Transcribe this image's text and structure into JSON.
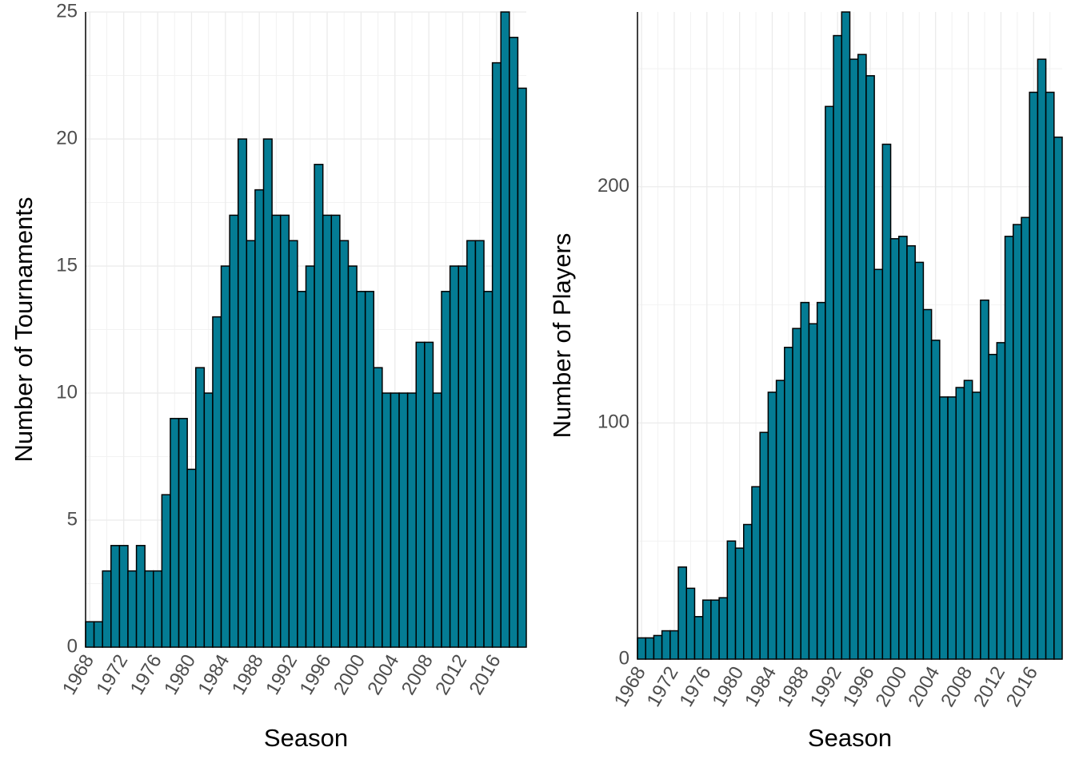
{
  "chart_data": [
    {
      "type": "bar",
      "xlabel": "Season",
      "ylabel": "Number of Tournaments",
      "color": "#047c94",
      "grid": true,
      "x": [
        1968,
        1969,
        1970,
        1971,
        1972,
        1973,
        1974,
        1975,
        1976,
        1977,
        1978,
        1979,
        1980,
        1981,
        1982,
        1983,
        1984,
        1985,
        1986,
        1987,
        1988,
        1989,
        1990,
        1991,
        1992,
        1993,
        1994,
        1995,
        1996,
        1997,
        1998,
        1999,
        2000,
        2001,
        2002,
        2003,
        2004,
        2005,
        2006,
        2007,
        2008,
        2009,
        2010,
        2011,
        2012,
        2013,
        2014,
        2015,
        2016,
        2017,
        2018,
        2019
      ],
      "values": [
        1,
        1,
        3,
        4,
        4,
        3,
        4,
        3,
        3,
        6,
        9,
        9,
        7,
        11,
        10,
        13,
        15,
        17,
        20,
        16,
        18,
        20,
        17,
        17,
        16,
        14,
        15,
        19,
        17,
        17,
        16,
        15,
        14,
        14,
        11,
        10,
        10,
        10,
        10,
        12,
        12,
        10,
        14,
        15,
        15,
        16,
        16,
        14,
        23,
        25,
        24,
        22
      ],
      "xlim": [
        1967.5,
        2019.5
      ],
      "xticks": [
        1968,
        1972,
        1976,
        1980,
        1984,
        1988,
        1992,
        1996,
        2000,
        2004,
        2008,
        2012,
        2016
      ],
      "ylim": [
        0,
        25
      ],
      "yticks": [
        0,
        5,
        10,
        15,
        20,
        25
      ]
    },
    {
      "type": "bar",
      "xlabel": "Season",
      "ylabel": "Number of Players",
      "color": "#047c94",
      "grid": true,
      "x": [
        1968,
        1969,
        1970,
        1971,
        1972,
        1973,
        1974,
        1975,
        1976,
        1977,
        1978,
        1979,
        1980,
        1981,
        1982,
        1983,
        1984,
        1985,
        1986,
        1987,
        1988,
        1989,
        1990,
        1991,
        1992,
        1993,
        1994,
        1995,
        1996,
        1997,
        1998,
        1999,
        2000,
        2001,
        2002,
        2003,
        2004,
        2005,
        2006,
        2007,
        2008,
        2009,
        2010,
        2011,
        2012,
        2013,
        2014,
        2015,
        2016,
        2017,
        2018,
        2019
      ],
      "values": [
        9,
        9,
        10,
        12,
        12,
        39,
        30,
        18,
        25,
        25,
        26,
        50,
        47,
        57,
        73,
        96,
        113,
        118,
        132,
        140,
        151,
        142,
        151,
        234,
        264,
        274,
        254,
        256,
        247,
        165,
        218,
        178,
        179,
        175,
        168,
        148,
        135,
        111,
        111,
        115,
        118,
        113,
        152,
        129,
        134,
        179,
        184,
        187,
        240,
        254,
        240,
        221
      ],
      "xlim": [
        1967.5,
        2019.5
      ],
      "xticks": [
        1968,
        1972,
        1976,
        1980,
        1984,
        1988,
        1992,
        1996,
        2000,
        2004,
        2008,
        2012,
        2016
      ],
      "ylim": [
        0,
        274
      ],
      "yticks": [
        0,
        100,
        200
      ]
    }
  ]
}
